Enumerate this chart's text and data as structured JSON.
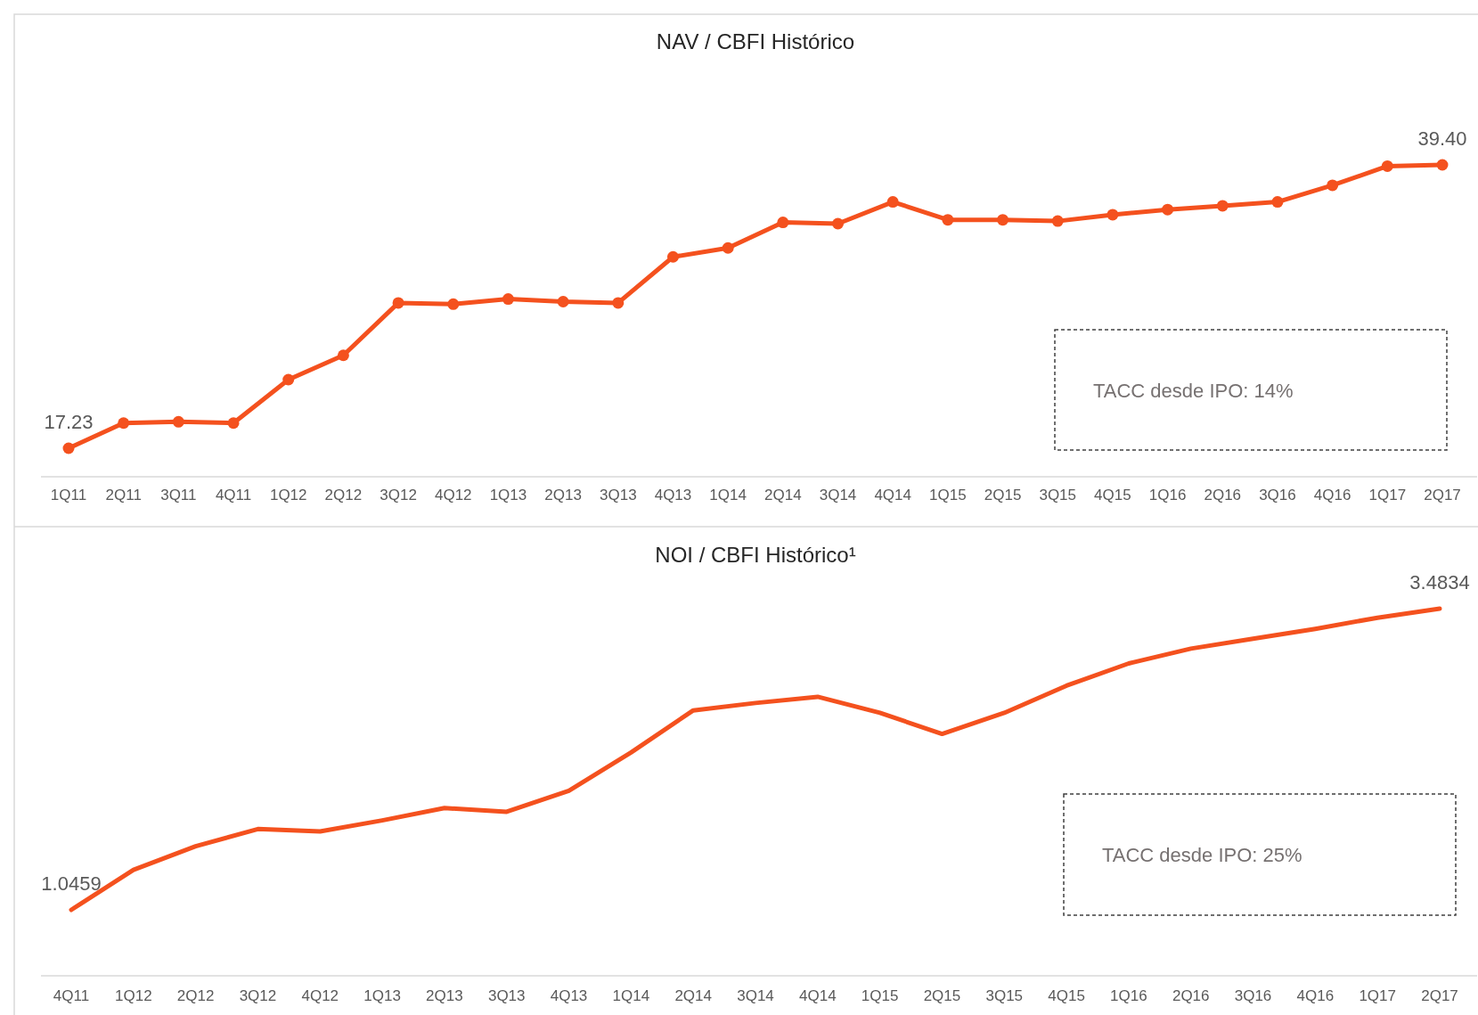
{
  "chart_data": [
    {
      "type": "line",
      "title": "NAV / CBFI Histórico",
      "categories": [
        "1Q11",
        "2Q11",
        "3Q11",
        "4Q11",
        "1Q12",
        "2Q12",
        "3Q12",
        "4Q12",
        "1Q13",
        "2Q13",
        "3Q13",
        "4Q13",
        "1Q14",
        "2Q14",
        "3Q14",
        "4Q14",
        "1Q15",
        "2Q15",
        "3Q15",
        "4Q15",
        "1Q16",
        "2Q16",
        "3Q16",
        "4Q16",
        "1Q17",
        "2Q17"
      ],
      "series": [
        {
          "color": "#f4511e",
          "values": [
            17.23,
            19.2,
            19.3,
            19.2,
            22.6,
            24.5,
            28.6,
            28.5,
            28.9,
            28.7,
            28.6,
            32.2,
            32.9,
            34.9,
            34.8,
            36.5,
            35.1,
            35.1,
            35.0,
            35.5,
            35.9,
            36.2,
            36.5,
            37.8,
            39.3,
            39.4
          ],
          "value_labels": [
            "17.23",
            null,
            null,
            null,
            null,
            null,
            null,
            null,
            null,
            null,
            null,
            null,
            null,
            null,
            null,
            null,
            null,
            null,
            null,
            null,
            null,
            null,
            null,
            null,
            null,
            "39.40"
          ]
        }
      ],
      "tick_labels": "x",
      "marker": "circle",
      "annotations": [
        "TACC desde IPO: 14%"
      ]
    },
    {
      "type": "line",
      "title": "NOI / CBFI Histórico¹",
      "categories": [
        "4Q11",
        "1Q12",
        "2Q12",
        "3Q12",
        "4Q12",
        "1Q13",
        "2Q13",
        "3Q13",
        "4Q13",
        "1Q14",
        "2Q14",
        "3Q14",
        "4Q14",
        "1Q15",
        "2Q15",
        "3Q15",
        "4Q15",
        "1Q16",
        "2Q16",
        "3Q16",
        "4Q16",
        "1Q17",
        "2Q17"
      ],
      "series": [
        {
          "color": "#f4511e",
          "values": [
            1.0459,
            1.37,
            1.56,
            1.7,
            1.68,
            1.77,
            1.87,
            1.84,
            2.01,
            2.32,
            2.66,
            2.72,
            2.77,
            2.64,
            2.47,
            2.64,
            2.86,
            3.04,
            3.16,
            3.24,
            3.32,
            3.41,
            3.4834
          ],
          "value_labels": [
            "1.0459",
            null,
            null,
            null,
            null,
            null,
            null,
            null,
            null,
            null,
            null,
            null,
            null,
            null,
            null,
            null,
            null,
            null,
            null,
            null,
            null,
            null,
            "3.4834"
          ]
        }
      ],
      "tick_labels": "x",
      "marker": "none",
      "annotations": [
        "TACC desde IPO: 25%"
      ]
    }
  ]
}
